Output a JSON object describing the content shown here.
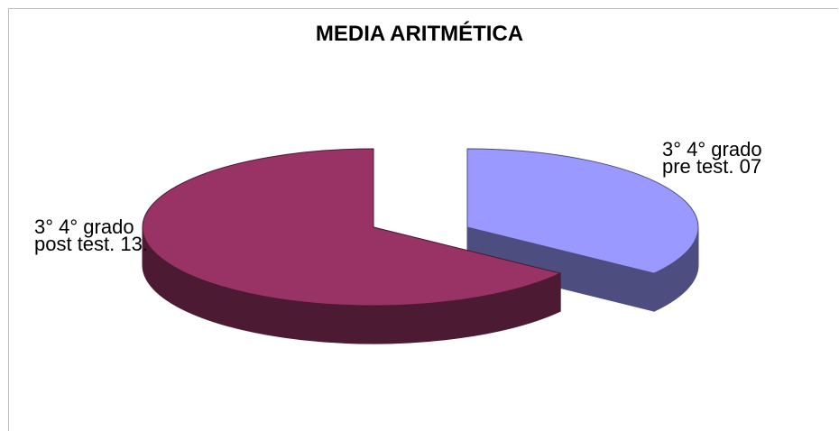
{
  "chart_data": {
    "type": "pie",
    "title": "MEDIA ARITMÉTICA",
    "slices": [
      {
        "label_line1": "3° 4° grado",
        "label_line2": "pre test. 07",
        "value": 7,
        "top_color": "#9999ff",
        "side_color": "#4d4d80"
      },
      {
        "label_line1": "3° 4° grado",
        "label_line2": "post test. 13.",
        "value": 13,
        "top_color": "#993366",
        "side_color": "#4d1a33"
      }
    ],
    "style": "3d-exploded",
    "legend": "none"
  }
}
